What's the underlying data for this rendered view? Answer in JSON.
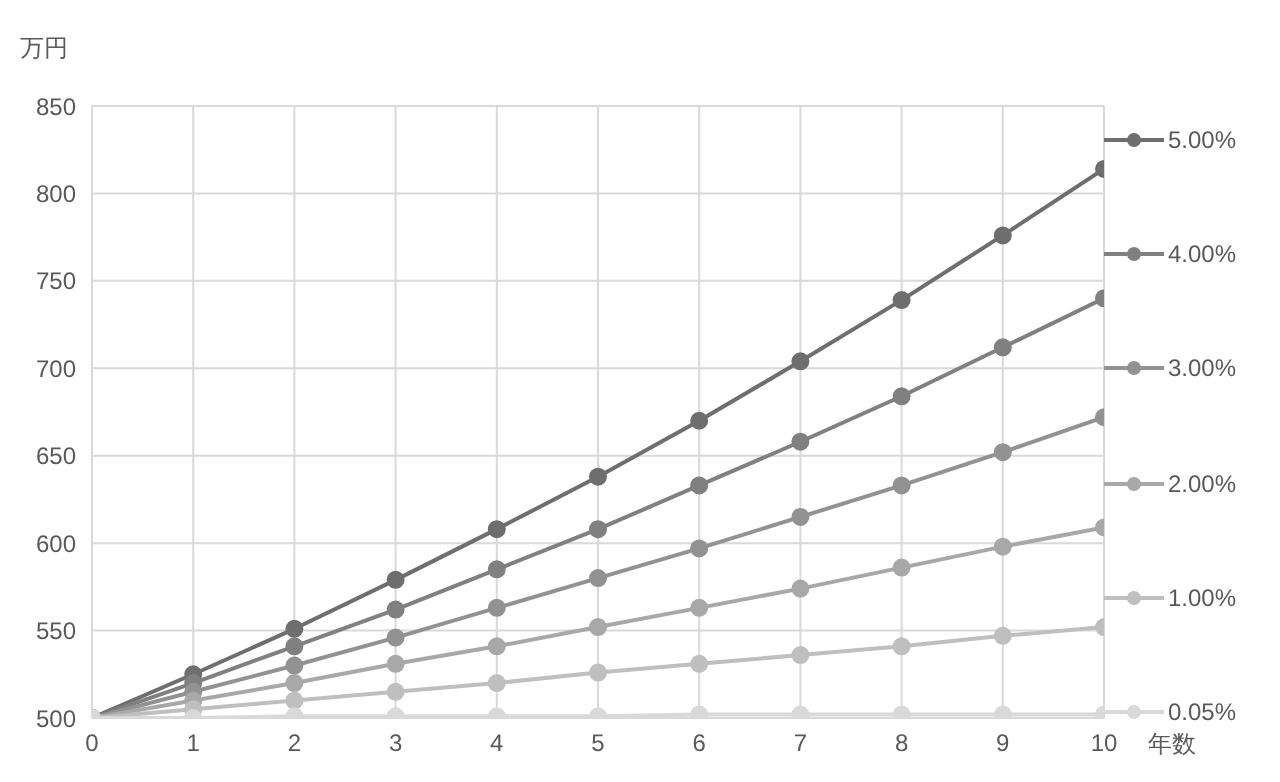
{
  "chart_data": {
    "type": "line",
    "ylabel": "万円",
    "xlabel": "年数",
    "x": [
      0,
      1,
      2,
      3,
      4,
      5,
      6,
      7,
      8,
      9,
      10
    ],
    "series": [
      {
        "name": "5.00%",
        "color": "#6e6e6e",
        "values": [
          500,
          525,
          551,
          579,
          608,
          638,
          670,
          704,
          739,
          776,
          814
        ]
      },
      {
        "name": "4.00%",
        "color": "#808080",
        "values": [
          500,
          520,
          541,
          562,
          585,
          608,
          633,
          658,
          684,
          712,
          740
        ]
      },
      {
        "name": "3.00%",
        "color": "#929292",
        "values": [
          500,
          515,
          530,
          546,
          563,
          580,
          597,
          615,
          633,
          652,
          672
        ]
      },
      {
        "name": "2.00%",
        "color": "#a8a8a8",
        "values": [
          500,
          510,
          520,
          531,
          541,
          552,
          563,
          574,
          586,
          598,
          609
        ]
      },
      {
        "name": "1.00%",
        "color": "#bfbfbf",
        "values": [
          500,
          505,
          510,
          515,
          520,
          526,
          531,
          536,
          541,
          547,
          552
        ]
      },
      {
        "name": "0.05%",
        "color": "#d9d9d9",
        "values": [
          500,
          500,
          501,
          501,
          501,
          501,
          502,
          502,
          502,
          502,
          502
        ]
      }
    ],
    "xlim": [
      0,
      10
    ],
    "xticks": [
      0,
      1,
      2,
      3,
      4,
      5,
      6,
      7,
      8,
      9,
      10
    ],
    "ylim": [
      500,
      850
    ],
    "yticks": [
      500,
      550,
      600,
      650,
      700,
      750,
      800,
      850
    ],
    "grid": true,
    "legend": "right",
    "marker": "circle",
    "line_style": "solid"
  }
}
